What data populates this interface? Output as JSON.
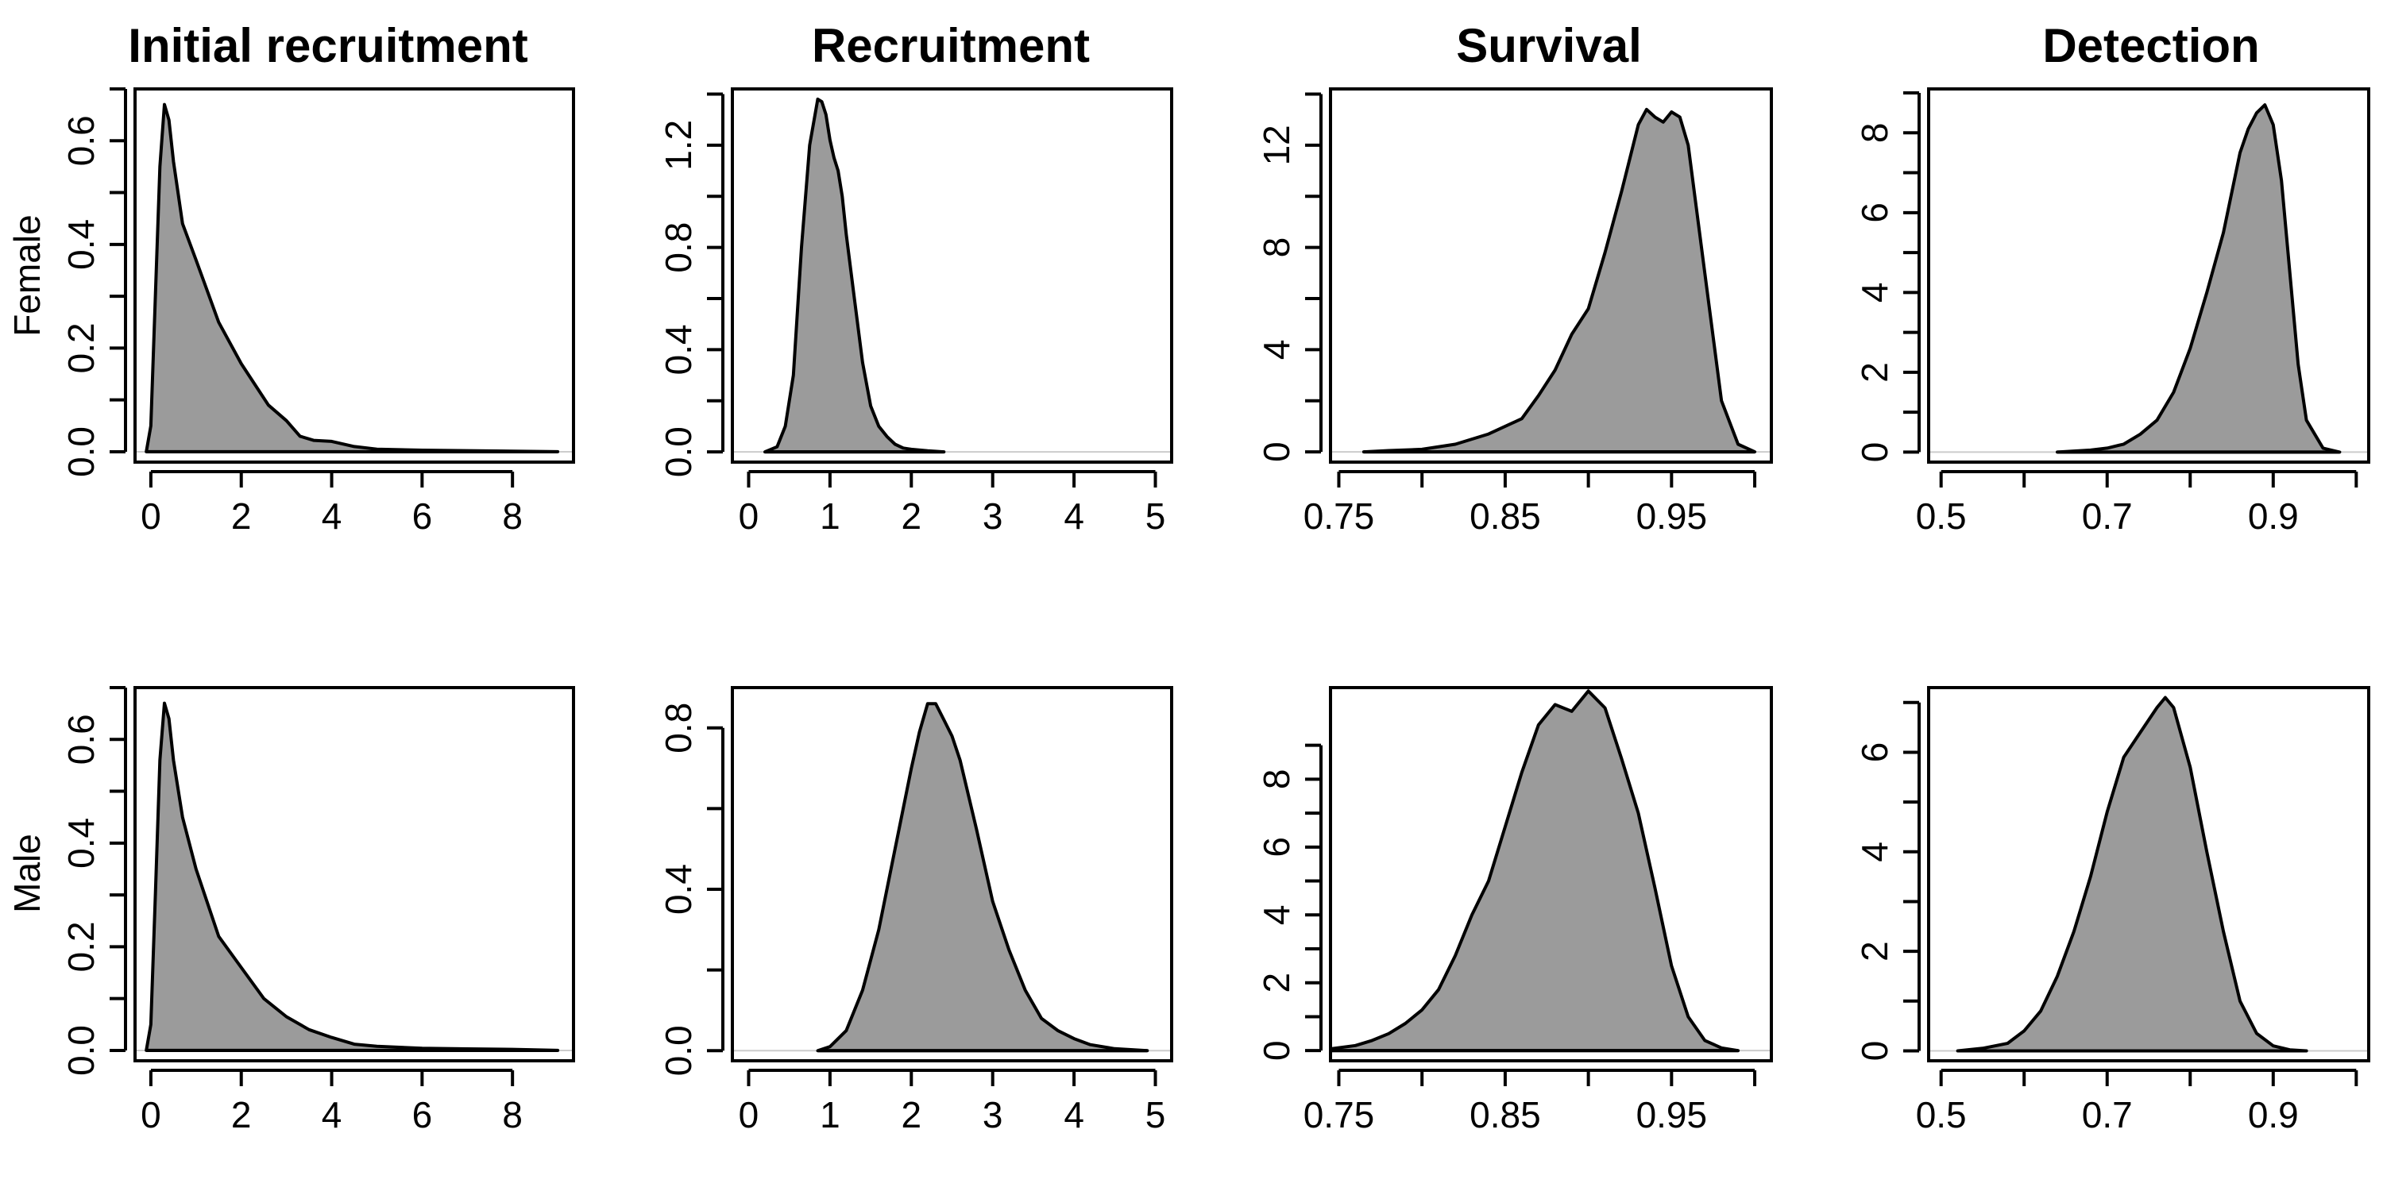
{
  "figure": {
    "columns": [
      "Initial recruitment",
      "Recruitment",
      "Survival",
      "Detection"
    ],
    "rows": [
      "Female",
      "Male"
    ]
  },
  "colors": {
    "fill": "#9b9b9b",
    "line": "#000000"
  },
  "chart_data": [
    {
      "type": "area",
      "title": "Initial recruitment",
      "ylabel": "Female",
      "xlim": [
        -0.35,
        9.35
      ],
      "ylim": [
        -0.02,
        0.7
      ],
      "xticks": [
        0,
        2,
        4,
        6,
        8
      ],
      "xtick_labels": [
        "0",
        "2",
        "4",
        "6",
        "8"
      ],
      "yticks": [
        0,
        0.2,
        0.4,
        0.6
      ],
      "ytick_labels": [
        "0.0",
        "0.2",
        "0.4",
        "0.6"
      ],
      "yminor": true,
      "x": [
        -0.1,
        0,
        0.1,
        0.2,
        0.3,
        0.4,
        0.5,
        0.7,
        1.0,
        1.5,
        2.0,
        2.3,
        2.6,
        3.0,
        3.3,
        3.6,
        4.0,
        4.5,
        5.0,
        6.0,
        7.0,
        8.0,
        9.0
      ],
      "y": [
        0.0,
        0.05,
        0.3,
        0.55,
        0.67,
        0.64,
        0.56,
        0.44,
        0.37,
        0.25,
        0.17,
        0.13,
        0.09,
        0.06,
        0.03,
        0.022,
        0.02,
        0.01,
        0.005,
        0.003,
        0.002,
        0.001,
        0.0
      ]
    },
    {
      "type": "area",
      "title": "Recruitment",
      "xlim": [
        -0.2,
        5.2
      ],
      "ylim": [
        -0.04,
        1.42
      ],
      "xticks": [
        0,
        1,
        2,
        3,
        4,
        5
      ],
      "xtick_labels": [
        "0",
        "1",
        "2",
        "3",
        "4",
        "5"
      ],
      "yticks": [
        0,
        0.4,
        0.8,
        1.2
      ],
      "ytick_labels": [
        "0.0",
        "0.4",
        "0.8",
        "1.2"
      ],
      "yminor": true,
      "x": [
        0.2,
        0.35,
        0.45,
        0.55,
        0.65,
        0.75,
        0.85,
        0.9,
        0.95,
        1.0,
        1.05,
        1.1,
        1.15,
        1.2,
        1.3,
        1.4,
        1.5,
        1.6,
        1.7,
        1.8,
        1.9,
        2.0,
        2.2,
        2.4
      ],
      "y": [
        0.0,
        0.02,
        0.1,
        0.3,
        0.8,
        1.2,
        1.38,
        1.37,
        1.32,
        1.22,
        1.15,
        1.1,
        1.0,
        0.85,
        0.6,
        0.35,
        0.18,
        0.1,
        0.06,
        0.03,
        0.015,
        0.01,
        0.004,
        0.0
      ]
    },
    {
      "type": "area",
      "title": "Survival",
      "xlim": [
        0.745,
        1.01
      ],
      "ylim": [
        -0.4,
        14.2
      ],
      "xticks": [
        0.75,
        0.85,
        0.95
      ],
      "xtick_labels": [
        "0.75",
        "0.85",
        "0.95"
      ],
      "xminor": [
        0.8,
        0.9,
        1.0
      ],
      "yticks": [
        0,
        4,
        8,
        12
      ],
      "ytick_labels": [
        "0",
        "4",
        "8",
        "12"
      ],
      "yminor": true,
      "x": [
        0.765,
        0.78,
        0.8,
        0.82,
        0.84,
        0.86,
        0.87,
        0.88,
        0.89,
        0.9,
        0.91,
        0.92,
        0.93,
        0.935,
        0.94,
        0.945,
        0.95,
        0.955,
        0.96,
        0.97,
        0.98,
        0.99,
        1.0
      ],
      "y": [
        0.0,
        0.05,
        0.1,
        0.3,
        0.7,
        1.3,
        2.2,
        3.2,
        4.6,
        5.6,
        7.8,
        10.2,
        12.8,
        13.4,
        13.1,
        12.9,
        13.3,
        13.1,
        12.0,
        7.0,
        2.0,
        0.3,
        0.0
      ]
    },
    {
      "type": "area",
      "title": "Detection",
      "xlim": [
        0.485,
        1.015
      ],
      "ylim": [
        -0.25,
        9.1
      ],
      "xticks": [
        0.5,
        0.7,
        0.9
      ],
      "xtick_labels": [
        "0.5",
        "0.7",
        "0.9"
      ],
      "xminor": [
        0.6,
        0.8,
        1.0
      ],
      "yticks": [
        0,
        2,
        4,
        6,
        8
      ],
      "ytick_labels": [
        "0",
        "2",
        "4",
        "6",
        "8"
      ],
      "yminor": true,
      "x": [
        0.64,
        0.68,
        0.7,
        0.72,
        0.74,
        0.76,
        0.78,
        0.8,
        0.82,
        0.84,
        0.86,
        0.87,
        0.88,
        0.89,
        0.9,
        0.91,
        0.92,
        0.93,
        0.94,
        0.96,
        0.98
      ],
      "y": [
        0.0,
        0.05,
        0.1,
        0.2,
        0.45,
        0.8,
        1.5,
        2.6,
        4.0,
        5.5,
        7.5,
        8.1,
        8.5,
        8.7,
        8.2,
        6.8,
        4.5,
        2.2,
        0.8,
        0.1,
        0.0
      ]
    },
    {
      "type": "area",
      "ylabel": "Male",
      "xlim": [
        -0.35,
        9.35
      ],
      "ylim": [
        -0.02,
        0.7
      ],
      "xticks": [
        0,
        2,
        4,
        6,
        8
      ],
      "xtick_labels": [
        "0",
        "2",
        "4",
        "6",
        "8"
      ],
      "yticks": [
        0,
        0.2,
        0.4,
        0.6
      ],
      "ytick_labels": [
        "0.0",
        "0.2",
        "0.4",
        "0.6"
      ],
      "yminor": true,
      "x": [
        -0.1,
        0,
        0.1,
        0.2,
        0.3,
        0.4,
        0.5,
        0.7,
        1.0,
        1.5,
        2.0,
        2.5,
        3.0,
        3.5,
        4.0,
        4.5,
        5.0,
        5.5,
        6.0,
        7.0,
        8.0,
        9.0
      ],
      "y": [
        0.0,
        0.05,
        0.3,
        0.56,
        0.67,
        0.64,
        0.56,
        0.45,
        0.35,
        0.22,
        0.16,
        0.1,
        0.065,
        0.04,
        0.025,
        0.012,
        0.008,
        0.006,
        0.004,
        0.003,
        0.002,
        0.0
      ]
    },
    {
      "type": "area",
      "xlim": [
        -0.2,
        5.2
      ],
      "ylim": [
        -0.025,
        0.9
      ],
      "xticks": [
        0,
        1,
        2,
        3,
        4,
        5
      ],
      "xtick_labels": [
        "0",
        "1",
        "2",
        "3",
        "4",
        "5"
      ],
      "yticks": [
        0,
        0.4,
        0.8
      ],
      "ytick_labels": [
        "0.0",
        "0.4",
        "0.8"
      ],
      "yminor": true,
      "x": [
        0.85,
        1.0,
        1.2,
        1.4,
        1.6,
        1.8,
        2.0,
        2.1,
        2.2,
        2.3,
        2.4,
        2.5,
        2.6,
        2.8,
        3.0,
        3.2,
        3.4,
        3.6,
        3.8,
        4.0,
        4.2,
        4.5,
        4.9
      ],
      "y": [
        0.0,
        0.01,
        0.05,
        0.15,
        0.3,
        0.5,
        0.7,
        0.79,
        0.86,
        0.86,
        0.82,
        0.78,
        0.72,
        0.55,
        0.37,
        0.25,
        0.15,
        0.08,
        0.05,
        0.03,
        0.015,
        0.005,
        0.0
      ]
    },
    {
      "type": "area",
      "xlim": [
        0.745,
        1.01
      ],
      "ylim": [
        -0.3,
        10.7
      ],
      "xticks": [
        0.75,
        0.85,
        0.95
      ],
      "xtick_labels": [
        "0.75",
        "0.85",
        "0.95"
      ],
      "xminor": [
        0.8,
        0.9,
        1.0
      ],
      "yticks": [
        0,
        2,
        4,
        6,
        8
      ],
      "ytick_labels": [
        "0",
        "2",
        "4",
        "6",
        "8"
      ],
      "yminor": true,
      "x": [
        0.745,
        0.76,
        0.77,
        0.78,
        0.79,
        0.8,
        0.81,
        0.82,
        0.83,
        0.84,
        0.85,
        0.86,
        0.87,
        0.88,
        0.89,
        0.9,
        0.91,
        0.92,
        0.93,
        0.94,
        0.95,
        0.96,
        0.97,
        0.98,
        0.99
      ],
      "y": [
        0.05,
        0.15,
        0.3,
        0.5,
        0.8,
        1.2,
        1.8,
        2.8,
        4.0,
        5.0,
        6.6,
        8.2,
        9.6,
        10.2,
        10.0,
        10.6,
        10.1,
        8.6,
        7.0,
        4.8,
        2.5,
        1.0,
        0.3,
        0.08,
        0.0
      ]
    },
    {
      "type": "area",
      "xlim": [
        0.485,
        1.015
      ],
      "ylim": [
        -0.2,
        7.3
      ],
      "xticks": [
        0.5,
        0.7,
        0.9
      ],
      "xtick_labels": [
        "0.5",
        "0.7",
        "0.9"
      ],
      "xminor": [
        0.6,
        0.8,
        1.0
      ],
      "yticks": [
        0,
        2,
        4,
        6
      ],
      "ytick_labels": [
        "0",
        "2",
        "4",
        "6"
      ],
      "yminor": true,
      "x": [
        0.52,
        0.55,
        0.58,
        0.6,
        0.62,
        0.64,
        0.66,
        0.68,
        0.7,
        0.72,
        0.74,
        0.76,
        0.77,
        0.78,
        0.8,
        0.82,
        0.84,
        0.86,
        0.88,
        0.9,
        0.92,
        0.94
      ],
      "y": [
        0.0,
        0.05,
        0.15,
        0.4,
        0.8,
        1.5,
        2.4,
        3.5,
        4.8,
        5.9,
        6.4,
        6.9,
        7.1,
        6.9,
        5.7,
        4.0,
        2.4,
        1.0,
        0.35,
        0.1,
        0.02,
        0.0
      ]
    }
  ]
}
